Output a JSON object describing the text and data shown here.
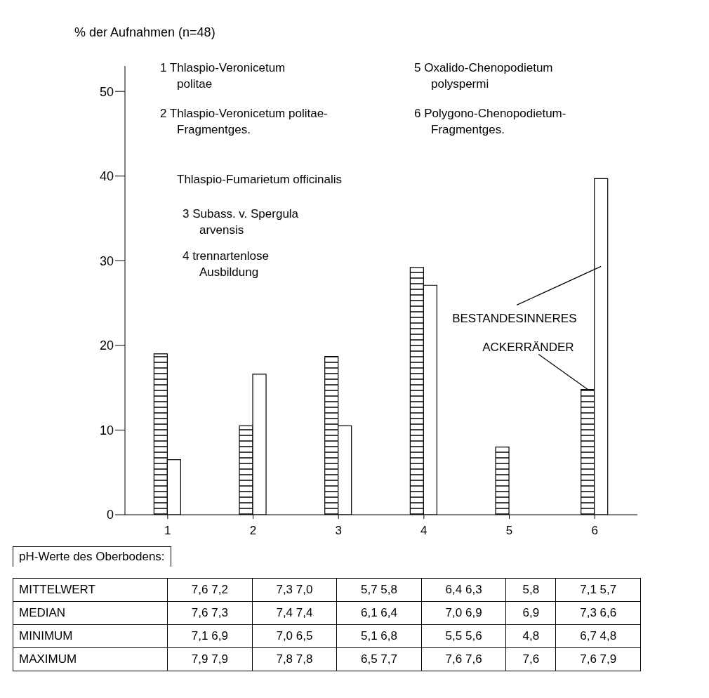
{
  "chart_data": {
    "type": "bar",
    "ylabel": "% der Aufnahmen (n=48)",
    "categories": [
      "1",
      "2",
      "3",
      "4",
      "5",
      "6"
    ],
    "series": [
      {
        "name": "ACKERRÄNDER",
        "color": "#000000",
        "values": [
          19,
          10.5,
          18.7,
          29.2,
          8,
          14.8
        ]
      },
      {
        "name": "BESTANDESINNERES",
        "color": "#ffffff",
        "values": [
          6.5,
          16.6,
          10.5,
          27.1,
          null,
          39.7
        ]
      }
    ],
    "ylim": [
      0,
      53
    ],
    "yticks": [
      0,
      10,
      20,
      30,
      40,
      50
    ],
    "grid": false,
    "annotations": [
      "1 Thlaspio-Veronicetum politae",
      "2 Thlaspio-Veronicetum politae-Fragmentges.",
      "Thlaspio-Fumarietum officinalis",
      "3 Subass. v. Spergula arvensis",
      "4 trennartenlose Ausbildung",
      "5 Oxalido-Chenopodietum polyspermi",
      "6 Polygono-Chenopodietum-Fragmentges.",
      "pH-Werte des Oberbodens:",
      "MITTELWERT",
      "7,6 7,2",
      "7,3 7,0",
      "5,7 5,8",
      "6,4 6,3",
      "5,8",
      "7,1 5,7",
      "MEDIAN",
      "7,6 7,3",
      "7,4 7,4",
      "6,1 6,4",
      "7,0 6,9",
      "6,9",
      "7,3 6,6",
      "MINIMUM",
      "7,1 6,9",
      "7,0 6,5",
      "5,1 6,8",
      "5,5 5,6",
      "4,8",
      "6,7 4,8",
      "MAXIMUM",
      "7,9 7,9",
      "7,8 7,8",
      "6,5 7,7",
      "7,6 7,6",
      "7,6",
      "7,6 7,9"
    ]
  }
}
